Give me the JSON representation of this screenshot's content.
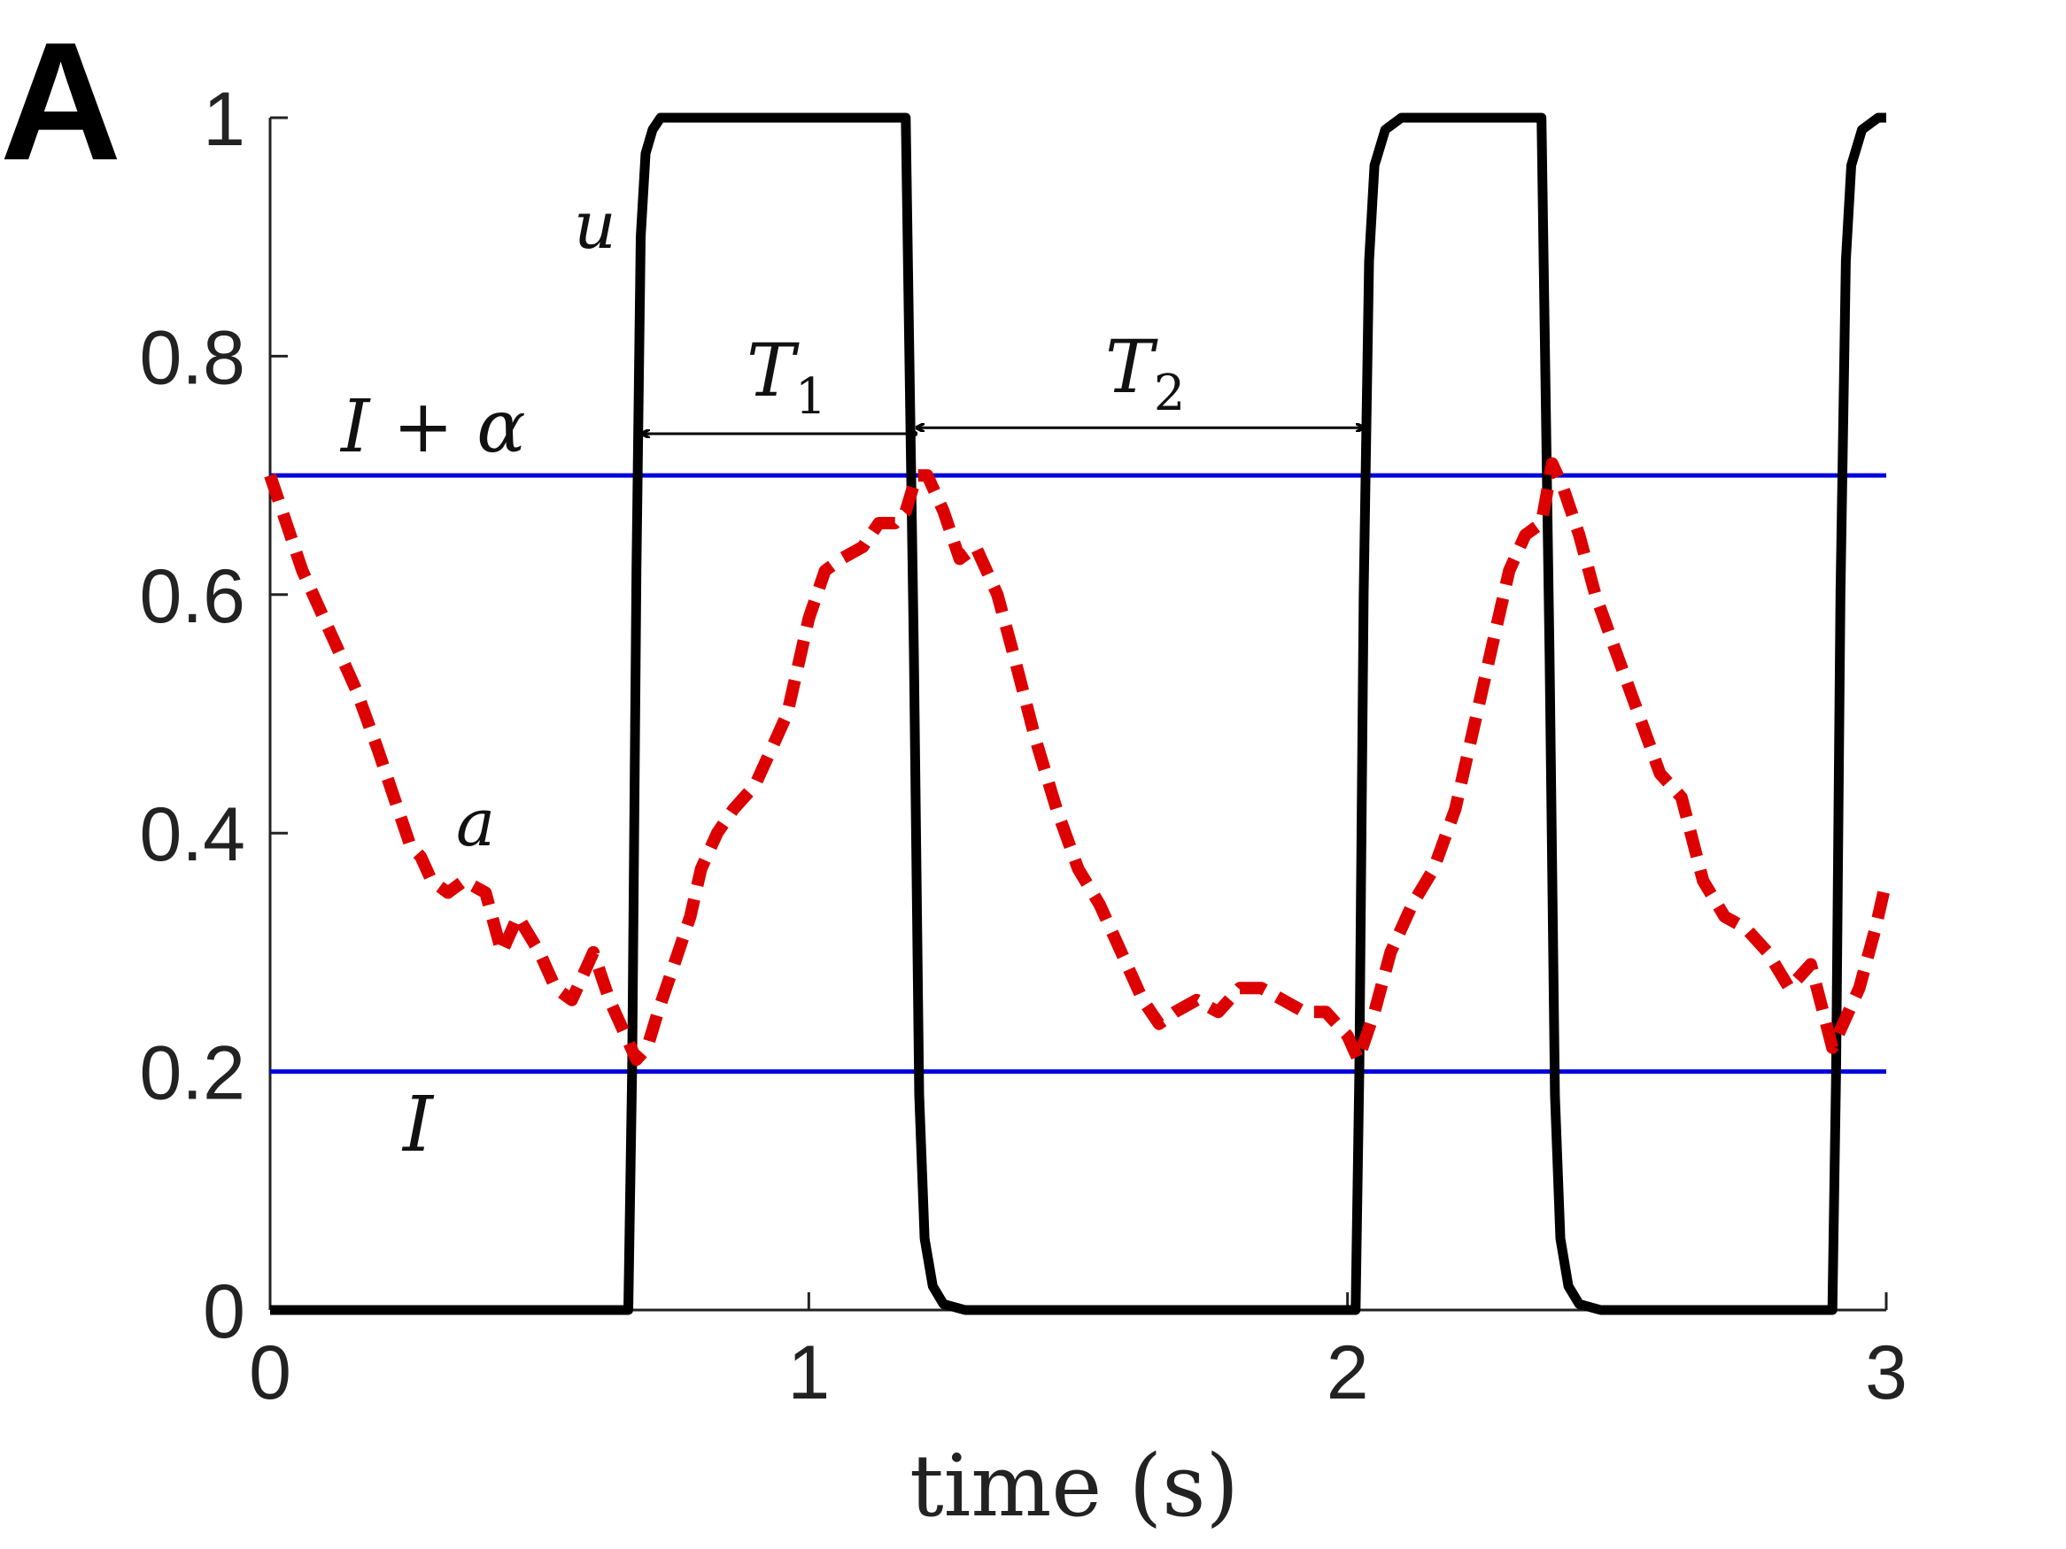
{
  "panel_label": "A",
  "chart_data": {
    "type": "line",
    "xlabel": "time (s)",
    "ylabel": "",
    "xlim": [
      0,
      3
    ],
    "ylim": [
      0,
      1
    ],
    "x_ticks": [
      "0",
      "1",
      "2",
      "3"
    ],
    "y_ticks": [
      "0",
      "0.2",
      "0.4",
      "0.6",
      "0.8",
      "1"
    ],
    "grid": false,
    "annotations": {
      "u_label": "u",
      "a_label": "a",
      "upper_line_label": "I + α",
      "lower_line_label": "I",
      "T1": "T",
      "T1_sub": "1",
      "T2": "T",
      "T2_sub": "2"
    },
    "colors": {
      "u": "#000000",
      "a": "#dd0000",
      "thresholds": "#0000dd"
    },
    "thresholds": [
      {
        "value": 0.7
      },
      {
        "value": 0.2
      }
    ],
    "intervals": [
      {
        "x0": 0.69,
        "x1": 1.2,
        "y": 0.735
      },
      {
        "x0": 1.2,
        "x1": 2.03,
        "y": 0.74
      }
    ],
    "series": [
      {
        "style": "solid",
        "x": [
          0,
          0.665,
          0.672,
          0.68,
          0.688,
          0.697,
          0.71,
          0.725,
          0.76,
          1.18,
          1.195,
          1.205,
          1.215,
          1.23,
          1.25,
          1.29,
          2.015,
          2.022,
          2.03,
          2.04,
          2.05,
          2.07,
          2.1,
          2.36,
          2.375,
          2.385,
          2.395,
          2.41,
          2.43,
          2.47,
          2.9,
          2.907,
          2.915,
          2.925,
          2.935,
          2.955,
          2.985,
          3.0
        ],
        "y": [
          0,
          0,
          0.2,
          0.62,
          0.9,
          0.97,
          0.99,
          1,
          1,
          1,
          0.55,
          0.18,
          0.06,
          0.02,
          0.005,
          0,
          0,
          0.2,
          0.6,
          0.88,
          0.96,
          0.99,
          1,
          1,
          0.55,
          0.18,
          0.06,
          0.02,
          0.005,
          0,
          0,
          0.2,
          0.6,
          0.88,
          0.96,
          0.99,
          1,
          1
        ]
      },
      {
        "style": "dashed",
        "x": [
          0,
          0.03,
          0.06,
          0.1,
          0.13,
          0.16,
          0.2,
          0.23,
          0.26,
          0.28,
          0.3,
          0.33,
          0.36,
          0.4,
          0.43,
          0.46,
          0.5,
          0.53,
          0.56,
          0.6,
          0.63,
          0.66,
          0.68,
          0.7,
          0.72,
          0.75,
          0.78,
          0.8,
          0.83,
          0.86,
          0.9,
          0.93,
          0.96,
          1.0,
          1.03,
          1.06,
          1.1,
          1.13,
          1.16,
          1.18,
          1.2,
          1.22,
          1.25,
          1.28,
          1.31,
          1.35,
          1.38,
          1.42,
          1.46,
          1.5,
          1.54,
          1.58,
          1.62,
          1.65,
          1.68,
          1.72,
          1.76,
          1.8,
          1.84,
          1.88,
          1.92,
          1.96,
          2.0,
          2.02,
          2.05,
          2.08,
          2.12,
          2.16,
          2.2,
          2.24,
          2.27,
          2.3,
          2.33,
          2.36,
          2.38,
          2.4,
          2.43,
          2.46,
          2.5,
          2.54,
          2.58,
          2.62,
          2.66,
          2.7,
          2.74,
          2.78,
          2.82,
          2.86,
          2.9,
          2.92,
          2.95,
          2.98,
          3.0
        ],
        "y": [
          0.7,
          0.66,
          0.62,
          0.58,
          0.55,
          0.52,
          0.47,
          0.43,
          0.39,
          0.38,
          0.36,
          0.35,
          0.36,
          0.35,
          0.3,
          0.33,
          0.3,
          0.27,
          0.26,
          0.3,
          0.26,
          0.23,
          0.21,
          0.22,
          0.25,
          0.29,
          0.33,
          0.37,
          0.4,
          0.42,
          0.44,
          0.47,
          0.5,
          0.58,
          0.62,
          0.63,
          0.64,
          0.66,
          0.66,
          0.67,
          0.7,
          0.7,
          0.67,
          0.63,
          0.64,
          0.6,
          0.55,
          0.48,
          0.42,
          0.37,
          0.34,
          0.3,
          0.26,
          0.24,
          0.25,
          0.26,
          0.25,
          0.27,
          0.27,
          0.26,
          0.25,
          0.25,
          0.23,
          0.21,
          0.25,
          0.3,
          0.34,
          0.37,
          0.42,
          0.5,
          0.56,
          0.62,
          0.65,
          0.66,
          0.71,
          0.69,
          0.65,
          0.6,
          0.55,
          0.5,
          0.45,
          0.43,
          0.36,
          0.33,
          0.32,
          0.3,
          0.27,
          0.29,
          0.22,
          0.24,
          0.27,
          0.32,
          0.36
        ]
      }
    ]
  }
}
